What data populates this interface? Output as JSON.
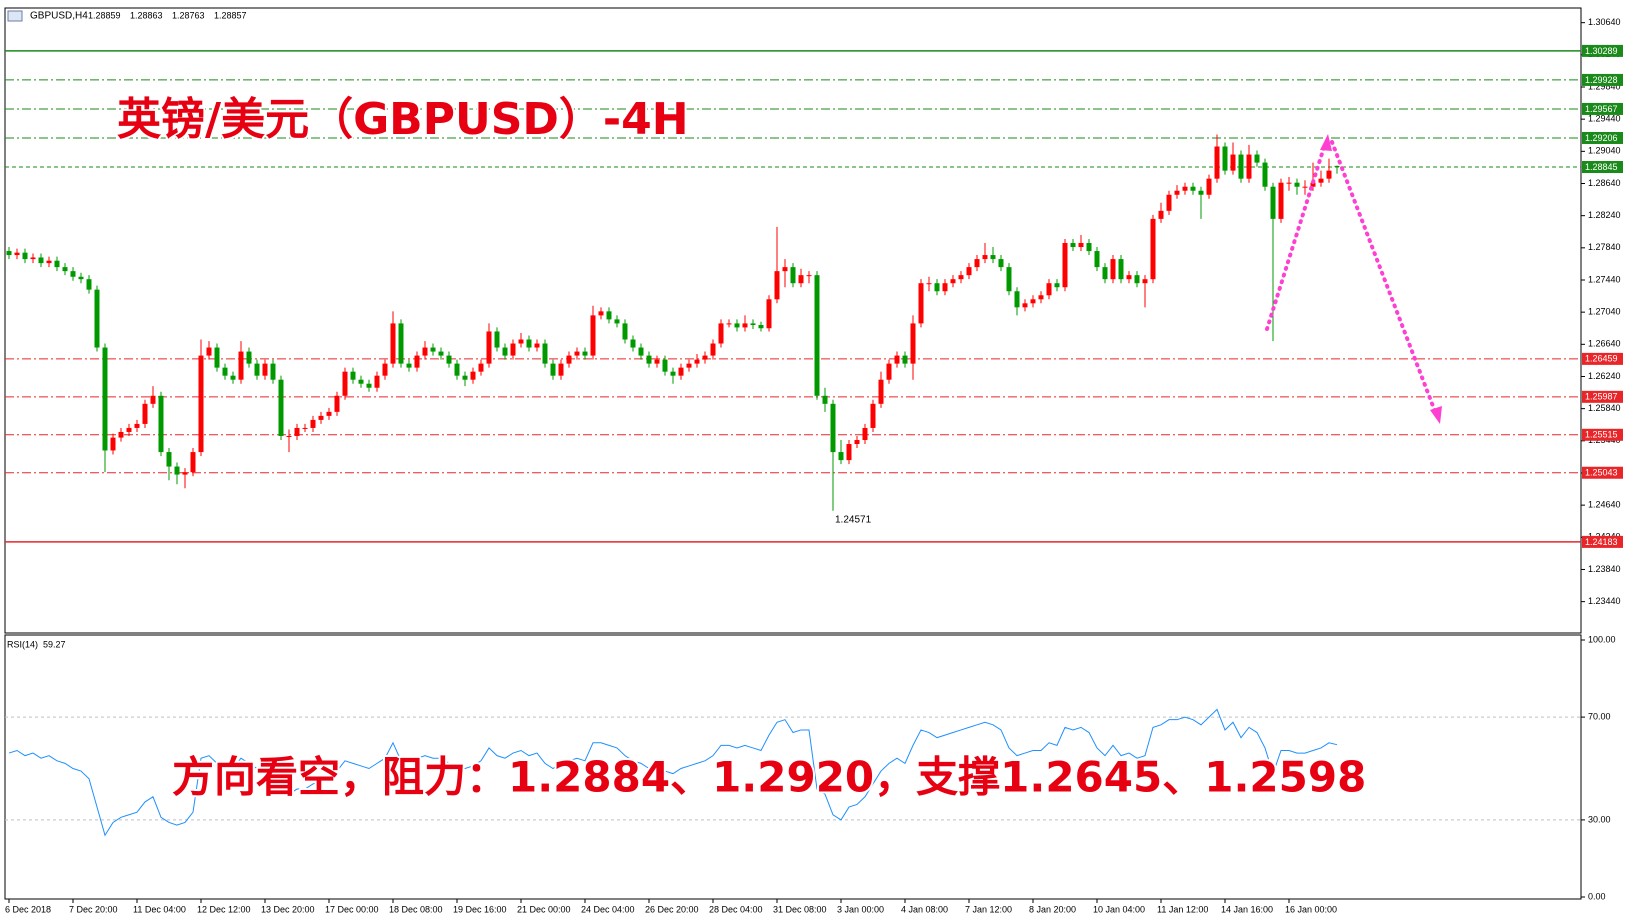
{
  "chart_data": [
    {
      "type": "candlestick",
      "symbol": "GBPUSD,H4",
      "title": "英镑/美元（GBPUSD）-4H",
      "annotation": "方向看空，阻力：1.2884、1.2920，支撑1.2645、1.2598",
      "up_color": "#ff0000",
      "down_color": "#009900",
      "ylim": [
        1.2305,
        1.3081
      ],
      "yticks": [
        {
          "value": 1.3064,
          "label": "1.30640"
        },
        {
          "value": 1.3024,
          "label": "1.30240"
        },
        {
          "value": 1.2984,
          "label": "1.29840"
        },
        {
          "value": 1.2944,
          "label": "1.29440"
        },
        {
          "value": 1.2904,
          "label": "1.29040"
        },
        {
          "value": 1.2864,
          "label": "1.28640"
        },
        {
          "value": 1.2824,
          "label": "1.28240"
        },
        {
          "value": 1.2784,
          "label": "1.27840"
        },
        {
          "value": 1.2744,
          "label": "1.27440"
        },
        {
          "value": 1.2704,
          "label": "1.27040"
        },
        {
          "value": 1.2664,
          "label": "1.26640"
        },
        {
          "value": 1.2624,
          "label": "1.26240"
        },
        {
          "value": 1.2584,
          "label": "1.25840"
        },
        {
          "value": 1.2544,
          "label": "1.25440"
        },
        {
          "value": 1.2504,
          "label": "1.25040"
        },
        {
          "value": 1.2464,
          "label": "1.24640"
        },
        {
          "value": 1.2424,
          "label": "1.24240"
        },
        {
          "value": 1.2384,
          "label": "1.23840"
        },
        {
          "value": 1.2344,
          "label": "1.23440"
        }
      ],
      "levels": [
        {
          "value": 1.30289,
          "color": "#1a8a1a",
          "style": "solid"
        },
        {
          "value": 1.29928,
          "color": "#1a8a1a",
          "style": "dashdot"
        },
        {
          "value": 1.29567,
          "color": "#1a8a1a",
          "style": "dashdot"
        },
        {
          "value": 1.29206,
          "color": "#1a8a1a",
          "style": "dashdot"
        },
        {
          "value": 1.28845,
          "color": "#1a8a1a",
          "style": "dashed"
        },
        {
          "value": 1.26459,
          "color": "#e8262a",
          "style": "dashdot"
        },
        {
          "value": 1.25987,
          "color": "#e8262a",
          "style": "dashdot"
        },
        {
          "value": 1.25515,
          "color": "#e8262a",
          "style": "dashdot"
        },
        {
          "value": 1.25043,
          "color": "#e8262a",
          "style": "dashdot"
        },
        {
          "value": 1.24183,
          "color": "#e8262a",
          "style": "solid"
        }
      ],
      "categories": [
        "6 Dec 2018",
        null,
        null,
        null,
        null,
        null,
        null,
        null,
        "7 Dec 20:00",
        null,
        null,
        null,
        null,
        null,
        null,
        null,
        "11 Dec 04:00",
        null,
        null,
        null,
        null,
        null,
        null,
        null,
        "12 Dec 12:00",
        null,
        null,
        null,
        null,
        null,
        null,
        null,
        "13 Dec 20:00",
        null,
        null,
        null,
        null,
        null,
        null,
        null,
        "17 Dec 00:00",
        null,
        null,
        null,
        null,
        null,
        null,
        null,
        "18 Dec 08:00",
        null,
        null,
        null,
        null,
        null,
        null,
        null,
        "19 Dec 16:00",
        null,
        null,
        null,
        null,
        null,
        null,
        null,
        "21 Dec 00:00",
        null,
        null,
        null,
        null,
        null,
        null,
        null,
        "24 Dec 04:00",
        null,
        null,
        null,
        null,
        null,
        null,
        null,
        "26 Dec 20:00",
        null,
        null,
        null,
        null,
        null,
        null,
        null,
        "28 Dec 04:00",
        null,
        null,
        null,
        null,
        null,
        null,
        null,
        "31 Dec 08:00",
        null,
        null,
        null,
        null,
        null,
        null,
        null,
        "3 Jan 00:00",
        null,
        null,
        null,
        null,
        null,
        null,
        null,
        "4 Jan 08:00",
        null,
        null,
        null,
        null,
        null,
        null,
        null,
        "7 Jan 12:00",
        null,
        null,
        null,
        null,
        null,
        null,
        null,
        "8 Jan 20:00",
        null,
        null,
        null,
        null,
        null,
        null,
        null,
        "10 Jan 04:00",
        null,
        null,
        null,
        null,
        null,
        null,
        null,
        "11 Jan 12:00",
        null,
        null,
        null,
        null,
        null,
        null,
        null,
        "14 Jan 16:00",
        null,
        null,
        null,
        null,
        null,
        null,
        null,
        "16 Jan 00:00",
        null,
        null,
        null,
        null,
        null,
        null
      ],
      "open": [
        1.278,
        1.2775,
        1.2778,
        1.277,
        1.2772,
        1.2765,
        1.2768,
        1.276,
        1.2755,
        1.2748,
        1.2745,
        1.2732,
        1.266,
        1.2532,
        1.2548,
        1.2555,
        1.256,
        1.2565,
        1.259,
        1.26,
        1.253,
        1.2512,
        1.2502,
        1.2505,
        1.253,
        1.265,
        1.266,
        1.2635,
        1.2625,
        1.262,
        1.2655,
        1.264,
        1.2625,
        1.264,
        1.262,
        1.255,
        1.255,
        1.256,
        1.256,
        1.257,
        1.2575,
        1.258,
        1.26,
        1.263,
        1.262,
        1.2615,
        1.261,
        1.2625,
        1.264,
        1.269,
        1.264,
        1.2635,
        1.265,
        1.266,
        1.2655,
        1.265,
        1.264,
        1.2625,
        1.262,
        1.263,
        1.264,
        1.268,
        1.266,
        1.265,
        1.2665,
        1.267,
        1.266,
        1.2665,
        1.264,
        1.2625,
        1.264,
        1.265,
        1.2655,
        1.265,
        1.27,
        1.2705,
        1.2695,
        1.269,
        1.267,
        1.266,
        1.265,
        1.264,
        1.2645,
        1.263,
        1.2625,
        1.2635,
        1.264,
        1.2645,
        1.265,
        1.2665,
        1.269,
        1.269,
        1.2685,
        1.269,
        1.2688,
        1.2684,
        1.272,
        1.2755,
        1.276,
        1.274,
        1.275,
        1.275,
        1.26,
        1.259,
        1.253,
        1.252,
        1.254,
        1.2545,
        1.256,
        1.259,
        1.262,
        1.264,
        1.265,
        1.264,
        1.269,
        1.274,
        1.274,
        1.273,
        1.274,
        1.2745,
        1.275,
        1.276,
        1.277,
        1.2775,
        1.277,
        1.276,
        1.273,
        1.271,
        1.2715,
        1.272,
        1.2725,
        1.274,
        1.2735,
        1.279,
        1.2785,
        1.279,
        1.278,
        1.276,
        1.2745,
        1.277,
        1.2745,
        1.275,
        1.274,
        1.2745,
        1.282,
        1.283,
        1.285,
        1.2855,
        1.286,
        1.2855,
        1.285,
        1.287,
        1.291,
        1.288,
        1.29,
        1.287,
        1.29,
        1.289,
        1.286,
        1.282,
        1.2865,
        1.2865,
        1.286,
        1.286,
        1.2865,
        1.287,
        1.28859
      ],
      "high": [
        1.2785,
        1.2783,
        1.2783,
        1.2777,
        1.2777,
        1.2773,
        1.2773,
        1.2765,
        1.276,
        1.2753,
        1.275,
        1.2737,
        1.2665,
        1.2553,
        1.256,
        1.2565,
        1.257,
        1.2595,
        1.2612,
        1.2605,
        1.2535,
        1.2517,
        1.251,
        1.2535,
        1.267,
        1.2668,
        1.2665,
        1.264,
        1.263,
        1.2668,
        1.266,
        1.2645,
        1.2645,
        1.2645,
        1.2625,
        1.2558,
        1.2565,
        1.2565,
        1.2575,
        1.258,
        1.2585,
        1.2605,
        1.2635,
        1.2635,
        1.2625,
        1.262,
        1.263,
        1.2645,
        1.2705,
        1.2695,
        1.2645,
        1.2655,
        1.2668,
        1.2665,
        1.266,
        1.2655,
        1.2645,
        1.263,
        1.2635,
        1.2645,
        1.269,
        1.2685,
        1.2665,
        1.267,
        1.2678,
        1.2675,
        1.267,
        1.267,
        1.2645,
        1.2645,
        1.2655,
        1.266,
        1.266,
        1.2712,
        1.271,
        1.271,
        1.27,
        1.2695,
        1.2675,
        1.2665,
        1.2655,
        1.265,
        1.265,
        1.2635,
        1.264,
        1.2645,
        1.2652,
        1.2655,
        1.267,
        1.2695,
        1.2695,
        1.2695,
        1.27,
        1.2695,
        1.2692,
        1.2725,
        1.281,
        1.277,
        1.2765,
        1.2758,
        1.2755,
        1.2755,
        1.261,
        1.2595,
        1.2545,
        1.2545,
        1.255,
        1.2565,
        1.2595,
        1.263,
        1.2645,
        1.2655,
        1.2655,
        1.27,
        1.2745,
        1.2748,
        1.2745,
        1.2745,
        1.275,
        1.2755,
        1.2765,
        1.2775,
        1.279,
        1.2785,
        1.2775,
        1.2765,
        1.2735,
        1.272,
        1.2725,
        1.273,
        1.2745,
        1.2745,
        1.2795,
        1.2795,
        1.28,
        1.2795,
        1.2785,
        1.2765,
        1.2775,
        1.2775,
        1.2755,
        1.2755,
        1.275,
        1.2825,
        1.284,
        1.2855,
        1.2862,
        1.2865,
        1.2865,
        1.286,
        1.2875,
        1.2925,
        1.2915,
        1.2915,
        1.2905,
        1.2912,
        1.2905,
        1.2895,
        1.2865,
        1.287,
        1.2872,
        1.287,
        1.2868,
        1.289,
        1.288,
        1.2895,
        1.28863
      ],
      "low": [
        1.277,
        1.277,
        1.2765,
        1.2765,
        1.276,
        1.276,
        1.2755,
        1.275,
        1.2743,
        1.274,
        1.2727,
        1.2655,
        1.2505,
        1.2527,
        1.2543,
        1.255,
        1.2555,
        1.256,
        1.2585,
        1.2525,
        1.2495,
        1.249,
        1.2485,
        1.25,
        1.2525,
        1.2645,
        1.263,
        1.262,
        1.2615,
        1.2615,
        1.2635,
        1.262,
        1.262,
        1.2615,
        1.2545,
        1.253,
        1.2545,
        1.2555,
        1.2555,
        1.2565,
        1.257,
        1.2575,
        1.2595,
        1.2615,
        1.261,
        1.2605,
        1.2605,
        1.262,
        1.2635,
        1.2635,
        1.263,
        1.263,
        1.2645,
        1.265,
        1.2645,
        1.2635,
        1.262,
        1.2612,
        1.2615,
        1.2625,
        1.2635,
        1.2655,
        1.2645,
        1.2645,
        1.266,
        1.2655,
        1.2655,
        1.2635,
        1.262,
        1.262,
        1.2635,
        1.2645,
        1.2645,
        1.2645,
        1.2695,
        1.269,
        1.2685,
        1.2665,
        1.2655,
        1.2645,
        1.2635,
        1.2635,
        1.2625,
        1.2615,
        1.262,
        1.263,
        1.2635,
        1.264,
        1.2645,
        1.266,
        1.2685,
        1.268,
        1.268,
        1.2683,
        1.268,
        1.268,
        1.2715,
        1.2735,
        1.2735,
        1.2735,
        1.274,
        1.2595,
        1.258,
        1.24571,
        1.2515,
        1.2515,
        1.2535,
        1.254,
        1.2555,
        1.2585,
        1.2615,
        1.2635,
        1.2635,
        1.262,
        1.2685,
        1.273,
        1.2725,
        1.2725,
        1.2735,
        1.274,
        1.2745,
        1.2755,
        1.2765,
        1.2765,
        1.2755,
        1.2725,
        1.27,
        1.2705,
        1.271,
        1.2715,
        1.272,
        1.273,
        1.273,
        1.278,
        1.278,
        1.2775,
        1.2755,
        1.274,
        1.274,
        1.274,
        1.274,
        1.2735,
        1.271,
        1.274,
        1.2815,
        1.2825,
        1.2845,
        1.285,
        1.285,
        1.282,
        1.2845,
        1.2865,
        1.2875,
        1.2875,
        1.2865,
        1.2865,
        1.2885,
        1.2855,
        1.2668,
        1.2815,
        1.2855,
        1.285,
        1.285,
        1.2855,
        1.286,
        1.2865,
        1.28763
      ],
      "close": [
        1.2775,
        1.2778,
        1.277,
        1.2772,
        1.2765,
        1.2768,
        1.276,
        1.2755,
        1.2748,
        1.2745,
        1.2732,
        1.266,
        1.2532,
        1.2548,
        1.2555,
        1.256,
        1.2565,
        1.259,
        1.26,
        1.253,
        1.2512,
        1.2502,
        1.2505,
        1.253,
        1.265,
        1.266,
        1.2635,
        1.2625,
        1.262,
        1.2655,
        1.264,
        1.2625,
        1.264,
        1.262,
        1.255,
        1.255,
        1.256,
        1.256,
        1.257,
        1.2575,
        1.258,
        1.26,
        1.263,
        1.262,
        1.2615,
        1.261,
        1.2625,
        1.264,
        1.269,
        1.264,
        1.2635,
        1.265,
        1.266,
        1.2655,
        1.265,
        1.264,
        1.2625,
        1.262,
        1.263,
        1.264,
        1.268,
        1.266,
        1.265,
        1.2665,
        1.267,
        1.266,
        1.2665,
        1.264,
        1.2625,
        1.264,
        1.265,
        1.2655,
        1.265,
        1.27,
        1.2705,
        1.2695,
        1.269,
        1.267,
        1.266,
        1.265,
        1.264,
        1.2645,
        1.263,
        1.2625,
        1.2635,
        1.264,
        1.2645,
        1.265,
        1.2665,
        1.269,
        1.269,
        1.2685,
        1.269,
        1.2688,
        1.2684,
        1.272,
        1.2755,
        1.276,
        1.274,
        1.275,
        1.275,
        1.26,
        1.259,
        1.253,
        1.252,
        1.254,
        1.2545,
        1.256,
        1.259,
        1.262,
        1.264,
        1.265,
        1.264,
        1.269,
        1.274,
        1.274,
        1.273,
        1.274,
        1.2745,
        1.275,
        1.276,
        1.277,
        1.2775,
        1.277,
        1.276,
        1.273,
        1.271,
        1.2715,
        1.272,
        1.2725,
        1.274,
        1.2735,
        1.279,
        1.2785,
        1.279,
        1.278,
        1.276,
        1.2745,
        1.277,
        1.2745,
        1.275,
        1.274,
        1.2745,
        1.282,
        1.283,
        1.285,
        1.2855,
        1.286,
        1.2855,
        1.285,
        1.287,
        1.291,
        1.288,
        1.29,
        1.287,
        1.29,
        1.289,
        1.286,
        1.282,
        1.2865,
        1.2865,
        1.286,
        1.286,
        1.2865,
        1.287,
        1.288,
        1.28857
      ]
    },
    {
      "type": "line",
      "name": "RSI(14)",
      "color": "#1e90ff",
      "ylim": [
        0,
        100
      ],
      "yticks": [
        {
          "value": 100,
          "label": "100.00"
        },
        {
          "value": 70,
          "label": "70.00"
        },
        {
          "value": 30,
          "label": "30.00"
        },
        {
          "value": 0,
          "label": "0.00"
        }
      ],
      "values": [
        56,
        57,
        55,
        56,
        54,
        55,
        53,
        52,
        50,
        49,
        46,
        35,
        24,
        29,
        31,
        32,
        33,
        37,
        39,
        31,
        29,
        28,
        29,
        33,
        54,
        55,
        52,
        51,
        50,
        54,
        52,
        50,
        52,
        49,
        40,
        40,
        42,
        42,
        44,
        45,
        46,
        49,
        53,
        52,
        51,
        50,
        52,
        54,
        60,
        53,
        52,
        54,
        55,
        54,
        54,
        52,
        50,
        50,
        51,
        53,
        58,
        55,
        54,
        56,
        57,
        55,
        56,
        52,
        50,
        52,
        53,
        54,
        53,
        60,
        60,
        59,
        58,
        55,
        53,
        52,
        50,
        51,
        49,
        48,
        50,
        51,
        52,
        53,
        55,
        59,
        59,
        58,
        59,
        58,
        57,
        63,
        68,
        69,
        64,
        65,
        65,
        42,
        40,
        32,
        30,
        35,
        36,
        39,
        44,
        49,
        52,
        54,
        52,
        59,
        65,
        64,
        62,
        63,
        64,
        65,
        66,
        67,
        68,
        67,
        65,
        58,
        55,
        56,
        57,
        57,
        60,
        59,
        66,
        65,
        66,
        64,
        58,
        55,
        59,
        55,
        56,
        54,
        55,
        66,
        67,
        69,
        69,
        70,
        69,
        67,
        70,
        73,
        65,
        68,
        62,
        66,
        64,
        58,
        48,
        57,
        57,
        56,
        56,
        57,
        58,
        60,
        59.27
      ]
    }
  ]
}
